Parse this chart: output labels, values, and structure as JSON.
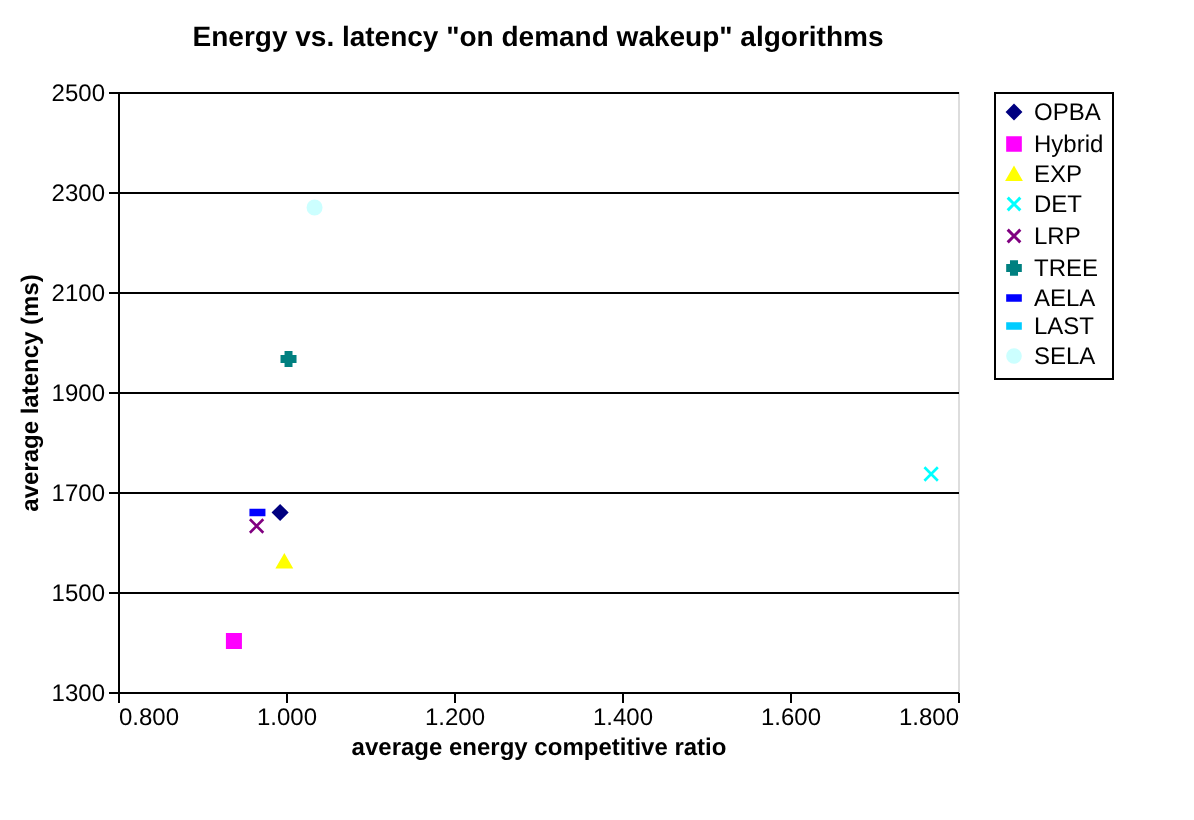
{
  "chart_data": {
    "type": "scatter",
    "title": "Energy vs. latency \"on demand wakeup\" algorithms",
    "xlabel": "average energy competitive ratio",
    "ylabel": "average latency (ms)",
    "xlim": [
      0.8,
      1.8
    ],
    "xticks": [
      {
        "value": 0.8,
        "label": "0.800"
      },
      {
        "value": 1.0,
        "label": "1.000"
      },
      {
        "value": 1.2,
        "label": "1.200"
      },
      {
        "value": 1.4,
        "label": "1.400"
      },
      {
        "value": 1.6,
        "label": "1.600"
      },
      {
        "value": 1.8,
        "label": "1.800"
      }
    ],
    "ylim": [
      1300,
      2500
    ],
    "yticks": [
      1300,
      1500,
      1700,
      1900,
      2100,
      2300,
      2500
    ],
    "grid": "y",
    "legend": "right",
    "series": [
      {
        "name": "OPBA",
        "color": "#000080",
        "marker": "diamond",
        "x": [
          0.993
        ],
        "values": [
          1659
        ]
      },
      {
        "name": "Hybrid",
        "color": "#ff00ff",
        "marker": "square",
        "x": [
          0.938
        ],
        "values": [
          1402
        ]
      },
      {
        "name": "EXP",
        "color": "#ffff00",
        "marker": "triangle",
        "x": [
          0.998
        ],
        "values": [
          1561
        ]
      },
      {
        "name": "DET",
        "color": "#00ffff",
        "marker": "cross",
        "x": [
          1.768
        ],
        "values": [
          1736
        ]
      },
      {
        "name": "LRP",
        "color": "#800080",
        "marker": "cross",
        "x": [
          0.965
        ],
        "values": [
          1632
        ]
      },
      {
        "name": "TREE",
        "color": "#008080",
        "marker": "plus",
        "x": [
          1.003
        ],
        "values": [
          1966
        ]
      },
      {
        "name": "AELA",
        "color": "#0000ff",
        "x": [
          0.966
        ],
        "values": [
          1659
        ]
      },
      {
        "name": "LAST",
        "color": "#00ccff",
        "x": [
          null
        ],
        "values": [
          null
        ]
      },
      {
        "name": "SELA",
        "color": "#ccffff",
        "marker": "circle",
        "x": [
          1.034
        ],
        "values": [
          2269
        ]
      }
    ]
  }
}
